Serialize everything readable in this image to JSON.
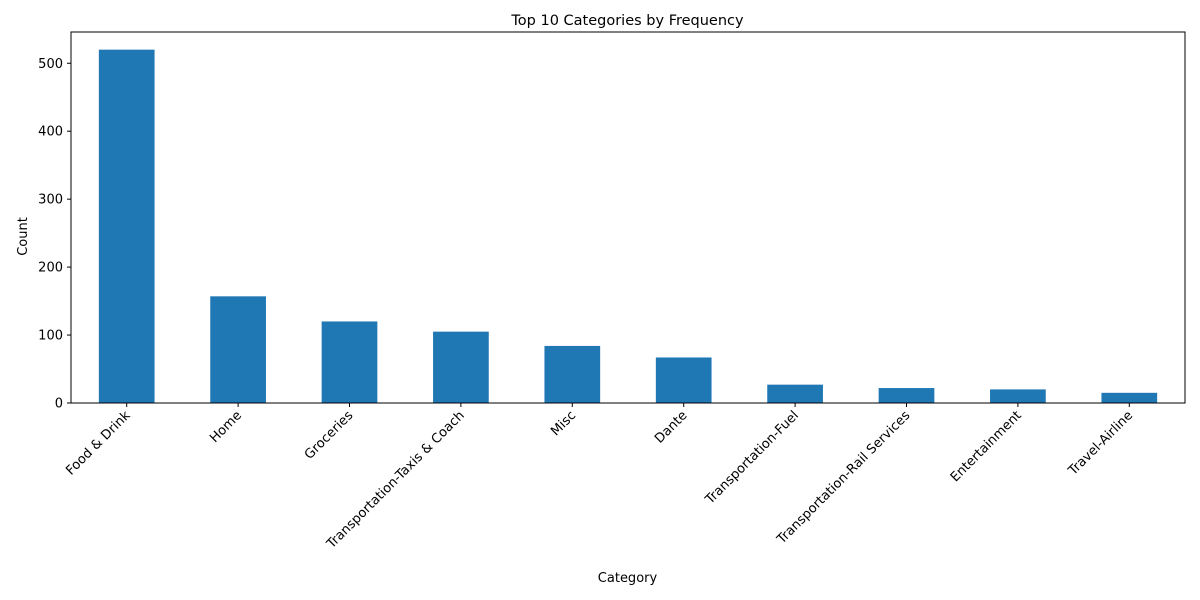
{
  "chart_data": {
    "type": "bar",
    "title": "Top 10 Categories by Frequency",
    "xlabel": "Category",
    "ylabel": "Count",
    "categories": [
      "Food & Drink",
      "Home",
      "Groceries",
      "Transportation-Taxis & Coach",
      "Misc",
      "Dante",
      "Transportation-Fuel",
      "Transportation-Rail Services",
      "Entertainment",
      "Travel-Airline"
    ],
    "values": [
      520,
      157,
      120,
      105,
      84,
      67,
      27,
      22,
      20,
      15
    ],
    "ylim": [
      0,
      546
    ],
    "yticks": [
      0,
      100,
      200,
      300,
      400,
      500
    ],
    "bar_color": "#1f77b4",
    "grid": false,
    "legend": "none"
  }
}
